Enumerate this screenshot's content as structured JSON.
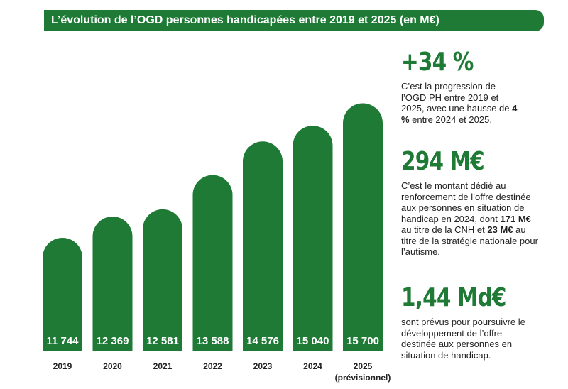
{
  "title": "L’évolution de l’OGD personnes handicapées entre 2019 et 2025 (en M€)",
  "chart_data": {
    "type": "bar",
    "title": "L’évolution de l’OGD personnes handicapées entre 2019 et 2025 (en M€)",
    "categories": [
      "2019",
      "2020",
      "2021",
      "2022",
      "2023",
      "2024",
      "2025"
    ],
    "category_note": "(prévisionnel)",
    "values": [
      11744,
      12369,
      12581,
      13588,
      14576,
      15040,
      15700
    ],
    "value_labels": [
      "11 744",
      "12 369",
      "12 581",
      "13 588",
      "14 576",
      "15 040",
      "15 700"
    ],
    "unit": "M€",
    "bar_color": "#1e7a35",
    "grid": false
  },
  "stats": [
    {
      "figure": "+34 %",
      "parts": [
        "C’est la progression de l’OGD PH entre 2019 et 2025, avec une hausse de ",
        "4 %",
        " entre 2024 et 2025."
      ]
    },
    {
      "figure": "294 M€",
      "parts": [
        "C’est le montant dédié au renforcement de l’offre destinée aux personnes en situation de handicap en 2024, dont ",
        "171 M€",
        " au titre de la CNH et ",
        "23 M€",
        " au titre de la stratégie nationale pour l’autisme."
      ]
    },
    {
      "figure": "1,44 Md€",
      "parts": [
        "sont prévus pour poursuivre le développement de l’offre destinée aux personnes en situation de handicap."
      ]
    }
  ],
  "colors": {
    "accent": "#1e7a35",
    "text": "#222222",
    "background": "#ffffff"
  }
}
